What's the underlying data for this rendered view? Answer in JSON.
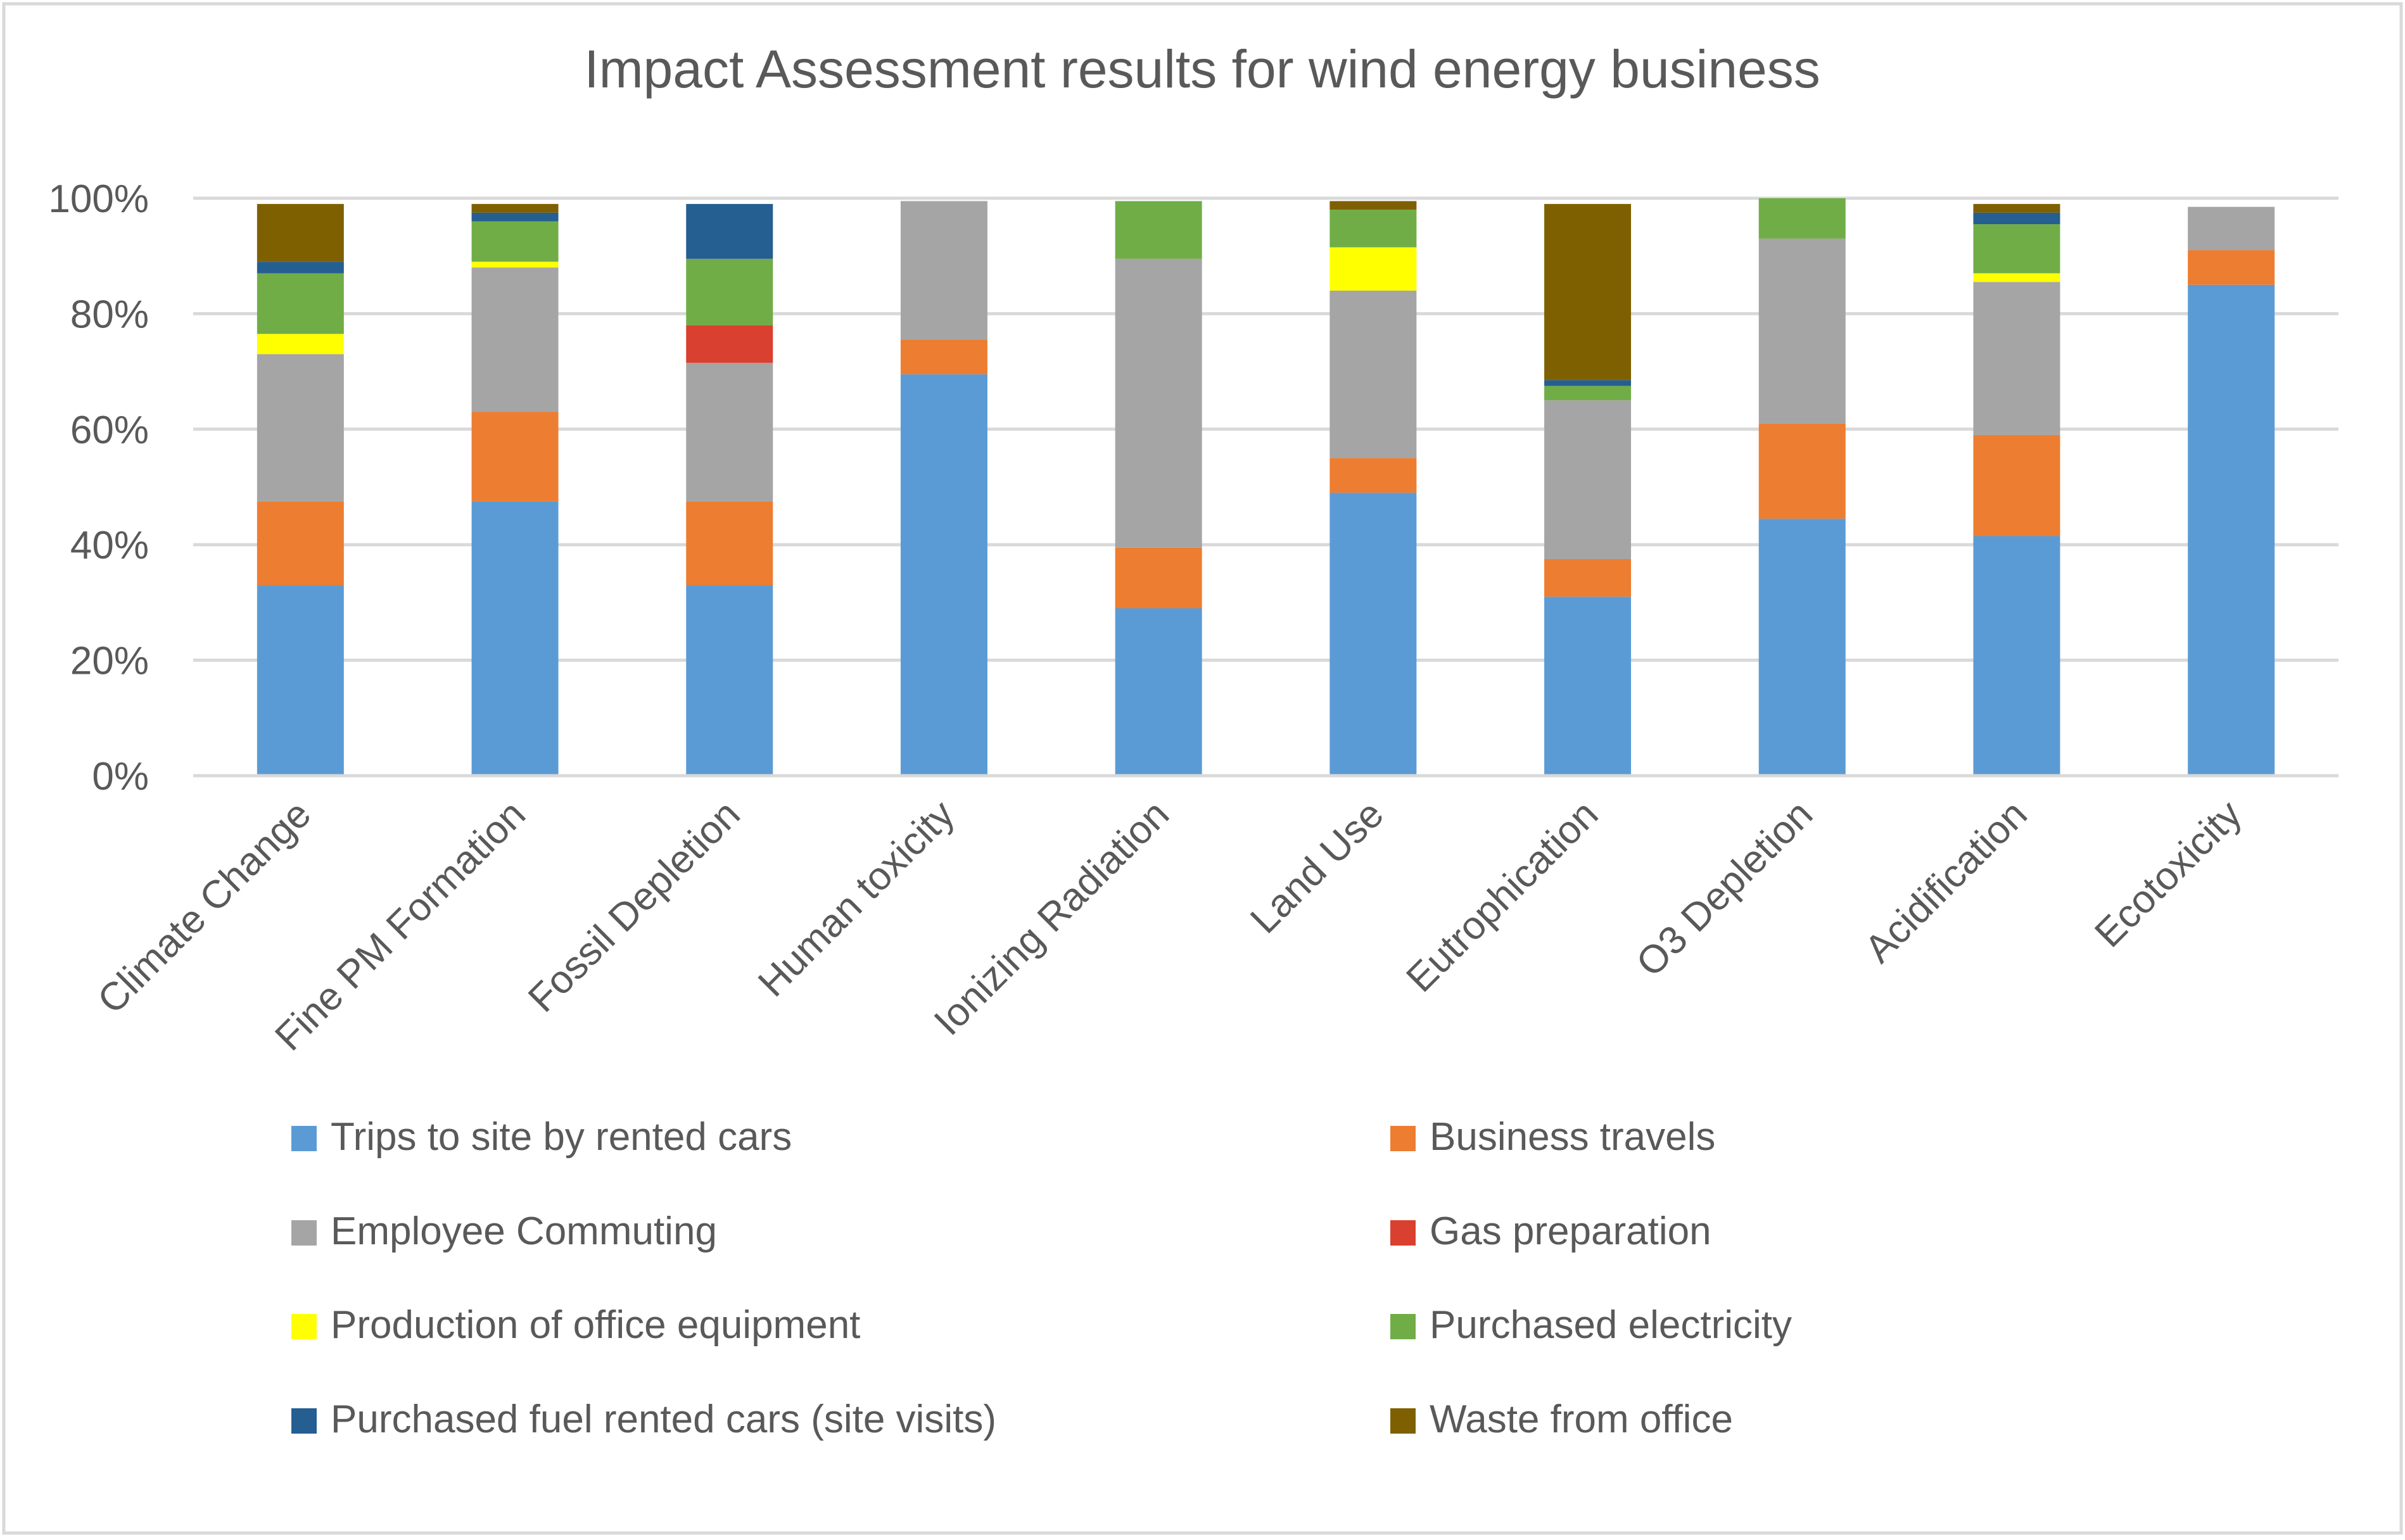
{
  "chart_data": {
    "type": "bar",
    "stacked": true,
    "title": "Impact Assessment results for wind energy business",
    "xlabel": "",
    "ylabel": "",
    "ylim": [
      0,
      100
    ],
    "yticks": [
      "0%",
      "20%",
      "40%",
      "60%",
      "80%",
      "100%"
    ],
    "yticks_values": [
      0,
      20,
      40,
      60,
      80,
      100
    ],
    "grid": true,
    "legend_position": "bottom",
    "categories": [
      "Climate Change",
      "Fine PM Formation",
      "Fossil Depletion",
      "Human toxicity",
      "Ionizing Radiation",
      "Land Use",
      "Eutrophication",
      "O3 Depletion",
      "Acidification",
      "Ecotoxicity"
    ],
    "series": [
      {
        "name": "Trips to site by rented cars",
        "color": "#5b9bd5",
        "values": [
          33,
          47.5,
          33,
          69.5,
          29,
          49,
          31,
          44.5,
          41.5,
          85
        ]
      },
      {
        "name": "Business travels",
        "color": "#ed7d31",
        "values": [
          14.5,
          15.5,
          14.5,
          6,
          10.5,
          6,
          6.5,
          16.5,
          17.5,
          6
        ]
      },
      {
        "name": "Employee Commuting",
        "color": "#a5a5a5",
        "values": [
          25.5,
          25,
          24,
          24,
          50,
          29,
          27.5,
          32,
          26.5,
          7.5
        ]
      },
      {
        "name": "Gas preparation",
        "color": "#d9402f",
        "values": [
          0,
          0,
          6.5,
          0,
          0,
          0,
          0,
          0,
          0,
          0
        ]
      },
      {
        "name": "Production of office equipment",
        "color": "#ffff00",
        "values": [
          3.5,
          1,
          0,
          0,
          0,
          7.5,
          0,
          0,
          1.5,
          0
        ]
      },
      {
        "name": "Purchased electricity",
        "color": "#70ad47",
        "values": [
          10.5,
          7,
          11.5,
          0,
          10,
          6.5,
          2.5,
          7,
          8.5,
          0
        ]
      },
      {
        "name": "Purchased fuel rented cars (site visits)",
        "color": "#255e91",
        "values": [
          2,
          1.5,
          9.5,
          0,
          0,
          0,
          1,
          0,
          2,
          0
        ]
      },
      {
        "name": "Waste from office",
        "color": "#7f6000",
        "values": [
          10,
          1.5,
          0,
          0,
          0,
          1.5,
          30.5,
          0,
          1.5,
          0
        ]
      }
    ]
  }
}
